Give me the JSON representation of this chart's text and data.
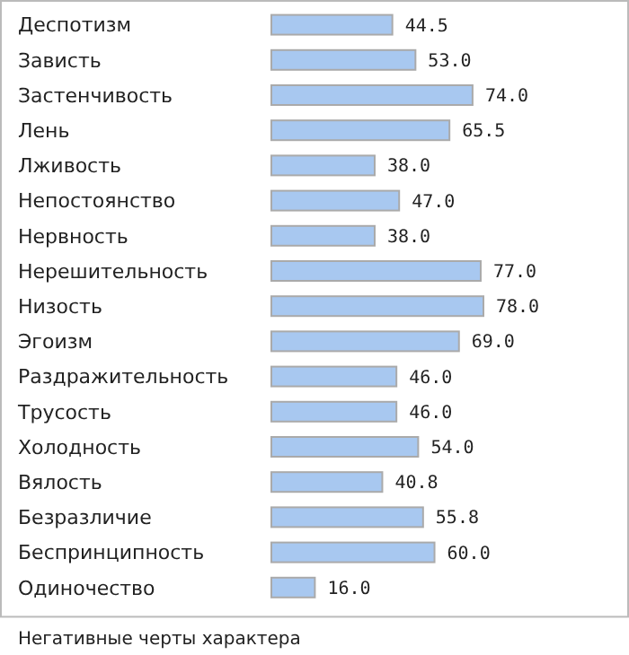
{
  "chart_data": {
    "type": "bar",
    "orientation": "horizontal",
    "categories": [
      "Деспотизм",
      "Зависть",
      "Застенчивость",
      "Лень",
      "Лживость",
      "Непостоянство",
      "Нервность",
      "Нерешительность",
      "Низость",
      "Эгоизм",
      "Раздражительность",
      "Трусость",
      "Холодность",
      "Вялость",
      "Безразличие",
      "Беспринципность",
      "Одиночество"
    ],
    "values": [
      44.5,
      53.0,
      74.0,
      65.5,
      38.0,
      47.0,
      38.0,
      77.0,
      78.0,
      69.0,
      46.0,
      46.0,
      54.0,
      40.8,
      55.8,
      60.0,
      16.0
    ],
    "value_labels": [
      "44.5",
      "53.0",
      "74.0",
      "65.5",
      "38.0",
      "47.0",
      "38.0",
      "77.0",
      "78.0",
      "69.0",
      "46.0",
      "46.0",
      "54.0",
      "40.8",
      "55.8",
      "60.0",
      "16.0"
    ],
    "color": "#a8c8f0",
    "annotations": [
      "Негативные черты характера"
    ]
  }
}
